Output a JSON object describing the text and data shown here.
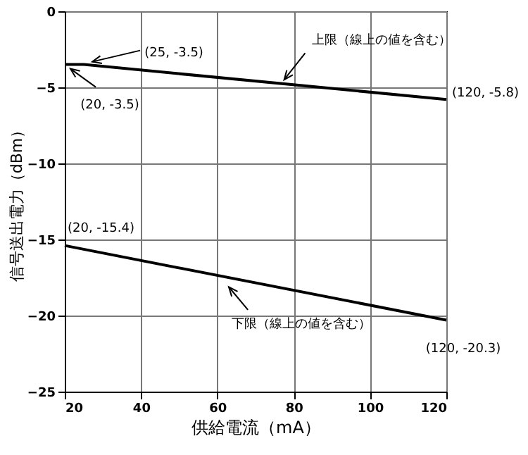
{
  "chart_data": {
    "type": "line",
    "xlabel": "供給電流（mA）",
    "ylabel": "信号送出電力（dBm）",
    "series": [
      {
        "x": [
          20,
          25,
          120
        ],
        "values": [
          -3.5,
          -3.5,
          -5.8
        ],
        "color": "#000000"
      },
      {
        "x": [
          20,
          120
        ],
        "values": [
          -15.4,
          -20.3
        ],
        "color": "#000000"
      }
    ],
    "xlim": [
      20,
      120
    ],
    "xticks": [
      20,
      40,
      60,
      80,
      100,
      120
    ],
    "ylim": [
      -25,
      0
    ],
    "yticks": [
      -25,
      -20,
      -15,
      -10,
      -5,
      0
    ],
    "grid": true,
    "marker": "none",
    "line_style": "solid",
    "annotations": [
      {
        "text": "(20, -3.5)",
        "x": 20,
        "y": -3.5
      },
      {
        "text": "(25, -3.5)",
        "x": 25,
        "y": -3.5
      },
      {
        "text": "(120, -5.8)",
        "x": 120,
        "y": -5.8
      },
      {
        "text": "(20, -15.4)",
        "x": 20,
        "y": -15.4
      },
      {
        "text": "(120, -20.3)",
        "x": 120,
        "y": -20.3
      },
      "上限（線上の値を含む）",
      "下限（線上の値を含む）"
    ]
  }
}
